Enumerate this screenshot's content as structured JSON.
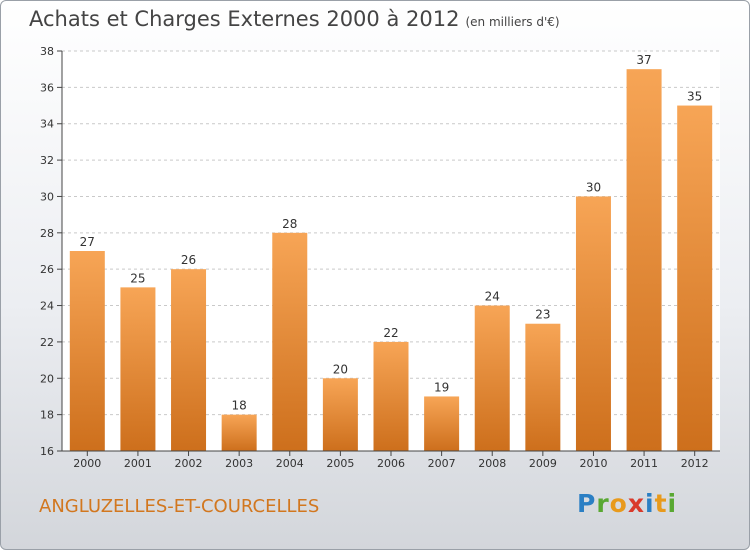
{
  "title": "Achats et Charges Externes 2000 à 2012",
  "unit": "(en milliers d'€)",
  "commune": "ANGLUZELLES-ET-COURCELLES",
  "logo": {
    "text": "Proxiti",
    "letters": [
      "P",
      "r",
      "o",
      "x",
      "i",
      "t",
      "i"
    ]
  },
  "colors": {
    "bar_light": "#f7a556",
    "bar_dark": "#cd6f1c",
    "commune": "#d2771f"
  },
  "chart_data": {
    "type": "bar",
    "categories": [
      "2000",
      "2001",
      "2002",
      "2003",
      "2004",
      "2005",
      "2006",
      "2007",
      "2008",
      "2009",
      "2010",
      "2011",
      "2012"
    ],
    "values": [
      27,
      25,
      26,
      18,
      28,
      20,
      22,
      19,
      24,
      23,
      30,
      37,
      35
    ],
    "ylim": [
      16,
      38
    ],
    "yticks": [
      16,
      18,
      20,
      22,
      24,
      26,
      28,
      30,
      32,
      34,
      36,
      38
    ],
    "grid": true,
    "xlabel": "",
    "ylabel": ""
  }
}
